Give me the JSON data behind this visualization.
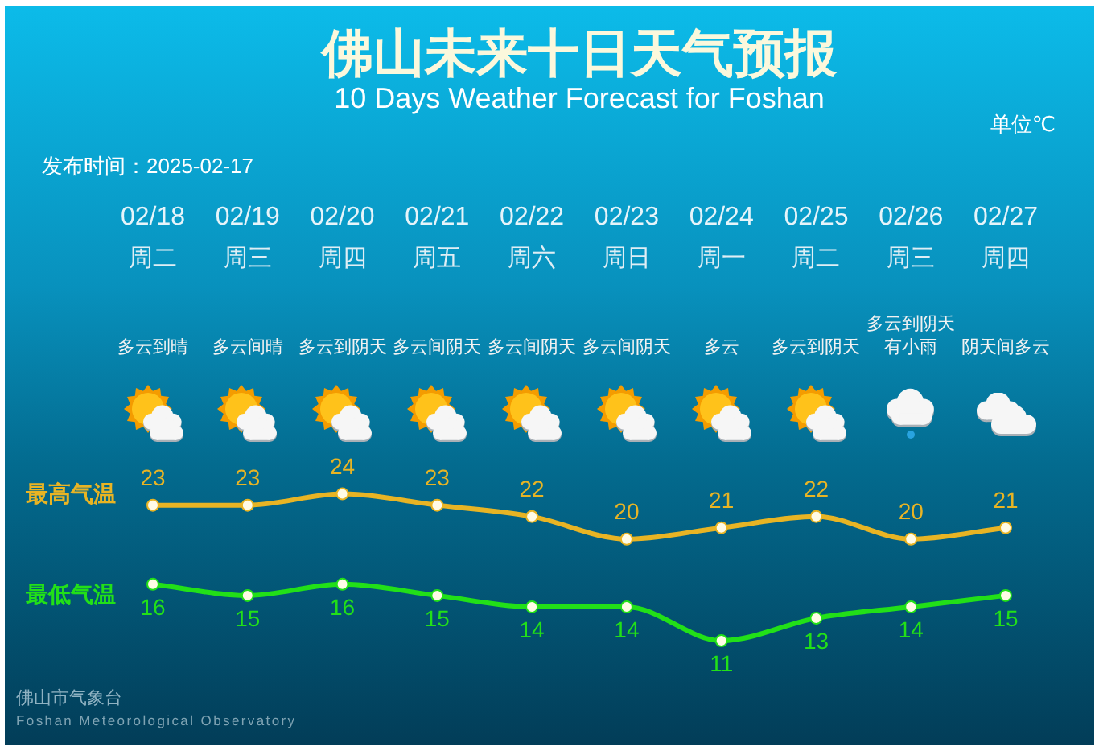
{
  "chart_data": {
    "type": "line",
    "title": "佛山未来十日天气预报",
    "subtitle": "10 Days Weather Forecast for Foshan",
    "categories": [
      "02/18",
      "02/19",
      "02/20",
      "02/21",
      "02/22",
      "02/23",
      "02/24",
      "02/25",
      "02/26",
      "02/27"
    ],
    "series": [
      {
        "name": "最高气温",
        "color": "#e8b424",
        "values": [
          23,
          23,
          24,
          23,
          22,
          20,
          21,
          22,
          20,
          21
        ]
      },
      {
        "name": "最低气温",
        "color": "#22e018",
        "values": [
          16,
          15,
          16,
          15,
          14,
          14,
          11,
          13,
          14,
          15
        ]
      }
    ],
    "data_labels": true,
    "marker": "circle",
    "tick_labels": "x",
    "grid": false,
    "legend": false,
    "annotations": [
      "单位℃",
      "发布时间：2025-02-17",
      "周二",
      "周三",
      "周四",
      "周五",
      "周六",
      "周日",
      "周一",
      "周二",
      "周三",
      "周四",
      "多云到晴",
      "多云间晴",
      "多云到阴天",
      "多云间阴天",
      "多云间阴天",
      "多云间阴天",
      "多云",
      "多云到阴天",
      "多云到阴天有小雨",
      "阴天间多云",
      "佛山市气象台",
      "Foshan Meteorological Observatory"
    ]
  }
}
